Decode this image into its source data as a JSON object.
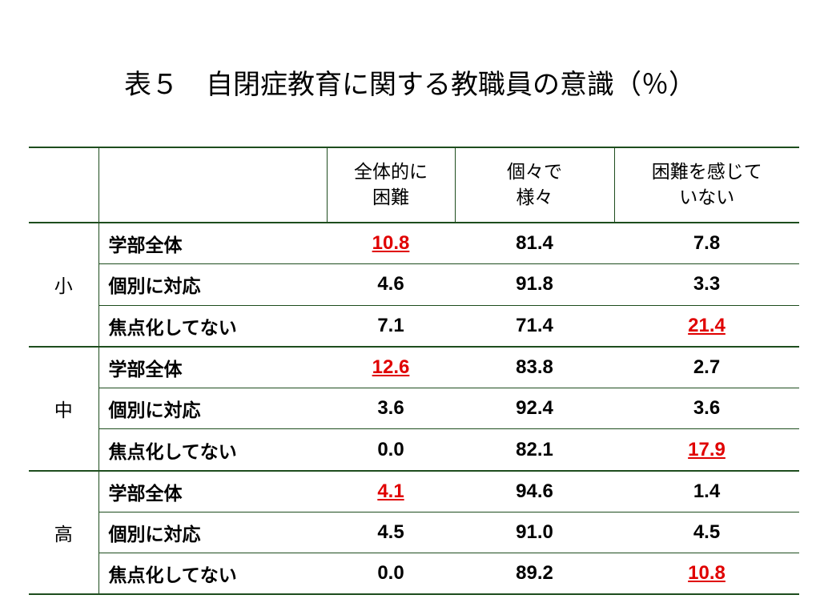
{
  "title": "表５　自閉症教育に関する教職員の意識（％）",
  "table": {
    "columns": [
      "全体的に\n困難",
      "個々で\n様々",
      "困難を感じて\nいない"
    ],
    "groups": [
      {
        "label": "小",
        "rows": [
          [
            "学部全体",
            "10.8",
            "81.4",
            "7.8"
          ],
          [
            "個別に対応",
            "4.6",
            "91.8",
            "3.3"
          ],
          [
            "焦点化してない",
            "7.1",
            "71.4",
            "21.4"
          ]
        ]
      },
      {
        "label": "中",
        "rows": [
          [
            "学部全体",
            "12.6",
            "83.8",
            "2.7"
          ],
          [
            "個別に対応",
            "3.6",
            "92.4",
            "3.6"
          ],
          [
            "焦点化してない",
            "0.0",
            "82.1",
            "17.9"
          ]
        ]
      },
      {
        "label": "高",
        "rows": [
          [
            "学部全体",
            "4.1",
            "94.6",
            "1.4"
          ],
          [
            "個別に対応",
            "4.5",
            "91.0",
            "4.5"
          ],
          [
            "焦点化してない",
            "0.0",
            "89.2",
            "10.8"
          ]
        ]
      }
    ]
  }
}
